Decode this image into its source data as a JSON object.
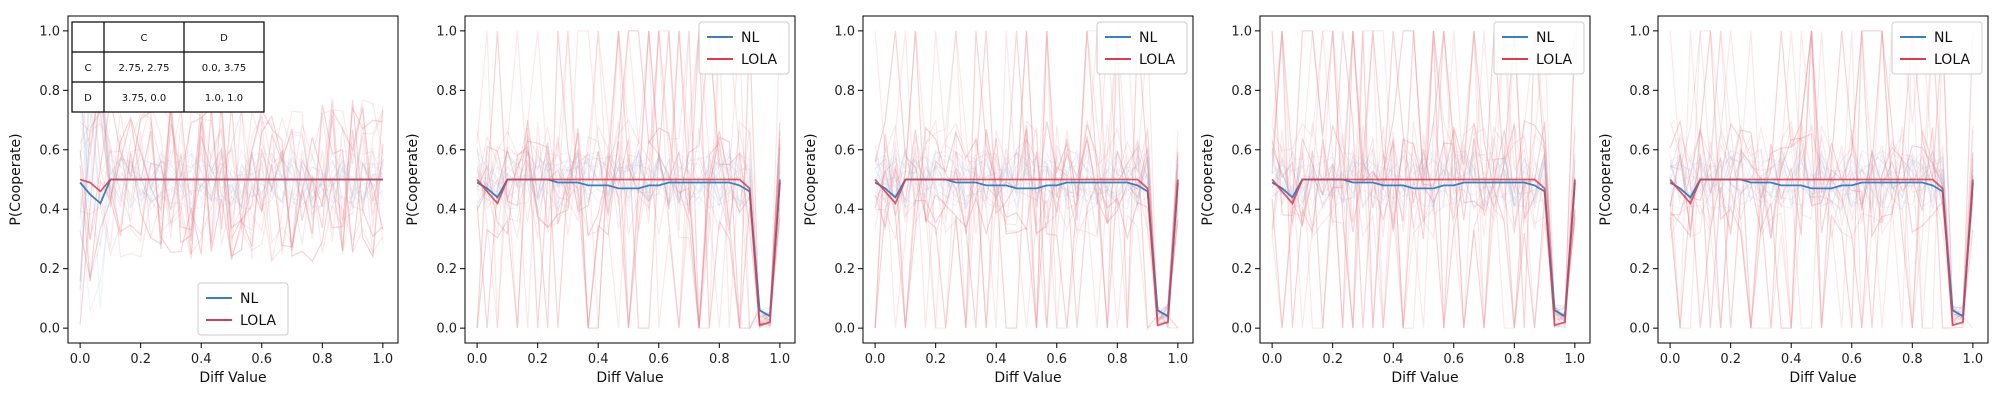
{
  "chart_data": [
    {
      "type": "line",
      "xlabel": "Diff Value",
      "ylabel": "P(Cooperate)",
      "xlim": [
        -0.04,
        1.05
      ],
      "ylim": [
        -0.05,
        1.05
      ],
      "xticks": [
        "0.0",
        "0.2",
        "0.4",
        "0.6",
        "0.8",
        "1.0"
      ],
      "yticks": [
        "0.0",
        "0.2",
        "0.4",
        "0.6",
        "0.8",
        "1.0"
      ],
      "legend_position": "bottom-center",
      "x": [
        0.0,
        0.033,
        0.067,
        0.1,
        0.133,
        0.167,
        0.2,
        0.233,
        0.267,
        0.3,
        0.333,
        0.367,
        0.4,
        0.433,
        0.467,
        0.5,
        0.533,
        0.567,
        0.6,
        0.633,
        0.667,
        0.7,
        0.733,
        0.767,
        0.8,
        0.833,
        0.867,
        0.9,
        0.933,
        0.967,
        1.0
      ],
      "series": [
        {
          "name": "NL",
          "color": "#3a7fbf",
          "values": [
            0.49,
            0.45,
            0.42,
            0.5,
            0.5,
            0.5,
            0.5,
            0.5,
            0.5,
            0.5,
            0.5,
            0.5,
            0.5,
            0.5,
            0.5,
            0.5,
            0.5,
            0.5,
            0.5,
            0.5,
            0.5,
            0.5,
            0.5,
            0.5,
            0.5,
            0.5,
            0.5,
            0.5,
            0.5,
            0.5,
            0.5
          ]
        },
        {
          "name": "LOLA",
          "color": "#d63f4f",
          "values": [
            0.5,
            0.49,
            0.46,
            0.5,
            0.5,
            0.5,
            0.5,
            0.5,
            0.5,
            0.5,
            0.5,
            0.5,
            0.5,
            0.5,
            0.5,
            0.5,
            0.5,
            0.5,
            0.5,
            0.5,
            0.5,
            0.5,
            0.5,
            0.5,
            0.5,
            0.5,
            0.5,
            0.5,
            0.5,
            0.5,
            0.5
          ]
        }
      ],
      "payoff_table": {
        "col_headers": [
          "C",
          "D"
        ],
        "rows": [
          {
            "label": "C",
            "cells": [
              "2.75, 2.75",
              "0.0, 3.75"
            ]
          },
          {
            "label": "D",
            "cells": [
              "3.75, 0.0",
              "1.0, 1.0"
            ]
          }
        ]
      }
    },
    {
      "type": "line",
      "xlabel": "Diff Value",
      "ylabel": "P(Cooperate)",
      "xlim": [
        -0.04,
        1.05
      ],
      "ylim": [
        -0.05,
        1.05
      ],
      "xticks": [
        "0.0",
        "0.2",
        "0.4",
        "0.6",
        "0.8",
        "1.0"
      ],
      "yticks": [
        "0.0",
        "0.2",
        "0.4",
        "0.6",
        "0.8",
        "1.0"
      ],
      "legend_position": "top-right",
      "x": [
        0.0,
        0.033,
        0.067,
        0.1,
        0.133,
        0.167,
        0.2,
        0.233,
        0.267,
        0.3,
        0.333,
        0.367,
        0.4,
        0.433,
        0.467,
        0.5,
        0.533,
        0.567,
        0.6,
        0.633,
        0.667,
        0.7,
        0.733,
        0.767,
        0.8,
        0.833,
        0.867,
        0.9,
        0.933,
        0.967,
        1.0
      ],
      "series": [
        {
          "name": "NL",
          "color": "#3a7fbf",
          "values": [
            0.49,
            0.47,
            0.44,
            0.5,
            0.5,
            0.5,
            0.5,
            0.5,
            0.49,
            0.49,
            0.49,
            0.48,
            0.48,
            0.48,
            0.47,
            0.47,
            0.47,
            0.48,
            0.48,
            0.49,
            0.49,
            0.49,
            0.49,
            0.49,
            0.49,
            0.49,
            0.48,
            0.46,
            0.06,
            0.04,
            0.49
          ]
        },
        {
          "name": "LOLA",
          "color": "#d63f4f",
          "values": [
            0.5,
            0.46,
            0.42,
            0.5,
            0.5,
            0.5,
            0.5,
            0.5,
            0.5,
            0.5,
            0.5,
            0.5,
            0.5,
            0.5,
            0.5,
            0.5,
            0.5,
            0.5,
            0.5,
            0.5,
            0.5,
            0.5,
            0.5,
            0.5,
            0.5,
            0.5,
            0.5,
            0.47,
            0.01,
            0.02,
            0.5
          ]
        }
      ]
    },
    {
      "type": "line",
      "xlabel": "Diff Value",
      "ylabel": "P(Cooperate)",
      "xlim": [
        -0.04,
        1.05
      ],
      "ylim": [
        -0.05,
        1.05
      ],
      "xticks": [
        "0.0",
        "0.2",
        "0.4",
        "0.6",
        "0.8",
        "1.0"
      ],
      "yticks": [
        "0.0",
        "0.2",
        "0.4",
        "0.6",
        "0.8",
        "1.0"
      ],
      "legend_position": "top-right",
      "x": [
        0.0,
        0.033,
        0.067,
        0.1,
        0.133,
        0.167,
        0.2,
        0.233,
        0.267,
        0.3,
        0.333,
        0.367,
        0.4,
        0.433,
        0.467,
        0.5,
        0.533,
        0.567,
        0.6,
        0.633,
        0.667,
        0.7,
        0.733,
        0.767,
        0.8,
        0.833,
        0.867,
        0.9,
        0.933,
        0.967,
        1.0
      ],
      "series": [
        {
          "name": "NL",
          "color": "#3a7fbf",
          "values": [
            0.49,
            0.47,
            0.44,
            0.5,
            0.5,
            0.5,
            0.5,
            0.5,
            0.49,
            0.49,
            0.49,
            0.48,
            0.48,
            0.48,
            0.47,
            0.47,
            0.47,
            0.48,
            0.48,
            0.49,
            0.49,
            0.49,
            0.49,
            0.49,
            0.49,
            0.49,
            0.48,
            0.46,
            0.06,
            0.04,
            0.49
          ]
        },
        {
          "name": "LOLA",
          "color": "#d63f4f",
          "values": [
            0.5,
            0.46,
            0.42,
            0.5,
            0.5,
            0.5,
            0.5,
            0.5,
            0.5,
            0.5,
            0.5,
            0.5,
            0.5,
            0.5,
            0.5,
            0.5,
            0.5,
            0.5,
            0.5,
            0.5,
            0.5,
            0.5,
            0.5,
            0.5,
            0.5,
            0.5,
            0.5,
            0.47,
            0.01,
            0.02,
            0.5
          ]
        }
      ]
    },
    {
      "type": "line",
      "xlabel": "Diff Value",
      "ylabel": "P(Cooperate)",
      "xlim": [
        -0.04,
        1.05
      ],
      "ylim": [
        -0.05,
        1.05
      ],
      "xticks": [
        "0.0",
        "0.2",
        "0.4",
        "0.6",
        "0.8",
        "1.0"
      ],
      "yticks": [
        "0.0",
        "0.2",
        "0.4",
        "0.6",
        "0.8",
        "1.0"
      ],
      "legend_position": "top-right",
      "x": [
        0.0,
        0.033,
        0.067,
        0.1,
        0.133,
        0.167,
        0.2,
        0.233,
        0.267,
        0.3,
        0.333,
        0.367,
        0.4,
        0.433,
        0.467,
        0.5,
        0.533,
        0.567,
        0.6,
        0.633,
        0.667,
        0.7,
        0.733,
        0.767,
        0.8,
        0.833,
        0.867,
        0.9,
        0.933,
        0.967,
        1.0
      ],
      "series": [
        {
          "name": "NL",
          "color": "#3a7fbf",
          "values": [
            0.49,
            0.47,
            0.44,
            0.5,
            0.5,
            0.5,
            0.5,
            0.5,
            0.49,
            0.49,
            0.49,
            0.48,
            0.48,
            0.48,
            0.47,
            0.47,
            0.47,
            0.48,
            0.48,
            0.49,
            0.49,
            0.49,
            0.49,
            0.49,
            0.49,
            0.49,
            0.48,
            0.46,
            0.06,
            0.04,
            0.49
          ]
        },
        {
          "name": "LOLA",
          "color": "#d63f4f",
          "values": [
            0.5,
            0.46,
            0.42,
            0.5,
            0.5,
            0.5,
            0.5,
            0.5,
            0.5,
            0.5,
            0.5,
            0.5,
            0.5,
            0.5,
            0.5,
            0.5,
            0.5,
            0.5,
            0.5,
            0.5,
            0.5,
            0.5,
            0.5,
            0.5,
            0.5,
            0.5,
            0.5,
            0.47,
            0.01,
            0.02,
            0.5
          ]
        }
      ]
    },
    {
      "type": "line",
      "xlabel": "Diff Value",
      "ylabel": "P(Cooperate)",
      "xlim": [
        -0.04,
        1.05
      ],
      "ylim": [
        -0.05,
        1.05
      ],
      "xticks": [
        "0.0",
        "0.2",
        "0.4",
        "0.6",
        "0.8",
        "1.0"
      ],
      "yticks": [
        "0.0",
        "0.2",
        "0.4",
        "0.6",
        "0.8",
        "1.0"
      ],
      "legend_position": "top-right",
      "x": [
        0.0,
        0.033,
        0.067,
        0.1,
        0.133,
        0.167,
        0.2,
        0.233,
        0.267,
        0.3,
        0.333,
        0.367,
        0.4,
        0.433,
        0.467,
        0.5,
        0.533,
        0.567,
        0.6,
        0.633,
        0.667,
        0.7,
        0.733,
        0.767,
        0.8,
        0.833,
        0.867,
        0.9,
        0.933,
        0.967,
        1.0
      ],
      "series": [
        {
          "name": "NL",
          "color": "#3a7fbf",
          "values": [
            0.49,
            0.47,
            0.44,
            0.5,
            0.5,
            0.5,
            0.5,
            0.5,
            0.49,
            0.49,
            0.49,
            0.48,
            0.48,
            0.48,
            0.47,
            0.47,
            0.47,
            0.48,
            0.48,
            0.49,
            0.49,
            0.49,
            0.49,
            0.49,
            0.49,
            0.49,
            0.48,
            0.46,
            0.06,
            0.04,
            0.49
          ]
        },
        {
          "name": "LOLA",
          "color": "#d63f4f",
          "values": [
            0.5,
            0.46,
            0.42,
            0.5,
            0.5,
            0.5,
            0.5,
            0.5,
            0.5,
            0.5,
            0.5,
            0.5,
            0.5,
            0.5,
            0.5,
            0.5,
            0.5,
            0.5,
            0.5,
            0.5,
            0.5,
            0.5,
            0.5,
            0.5,
            0.5,
            0.5,
            0.5,
            0.47,
            0.01,
            0.02,
            0.5
          ]
        }
      ]
    }
  ]
}
